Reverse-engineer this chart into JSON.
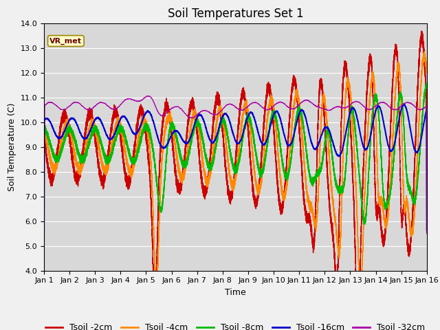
{
  "title": "Soil Temperatures Set 1",
  "xlabel": "Time",
  "ylabel": "Soil Temperature (C)",
  "ylim": [
    4.0,
    14.0
  ],
  "yticks": [
    4.0,
    5.0,
    6.0,
    7.0,
    8.0,
    9.0,
    10.0,
    11.0,
    12.0,
    13.0,
    14.0
  ],
  "days": 15,
  "legend_entries": [
    "Tsoil -2cm",
    "Tsoil -4cm",
    "Tsoil -8cm",
    "Tsoil -16cm",
    "Tsoil -32cm"
  ],
  "line_colors": [
    "#cc0000",
    "#ff8800",
    "#00bb00",
    "#0000cc",
    "#aa00aa"
  ],
  "line_widths": [
    1.0,
    1.0,
    1.0,
    1.5,
    1.0
  ],
  "annotation_text": "VR_met",
  "plot_bg_color": "#d8d8d8",
  "fig_bg_color": "#f0f0f0",
  "grid_color": "#ffffff",
  "title_fontsize": 12,
  "label_fontsize": 9,
  "tick_fontsize": 8,
  "legend_fontsize": 9
}
